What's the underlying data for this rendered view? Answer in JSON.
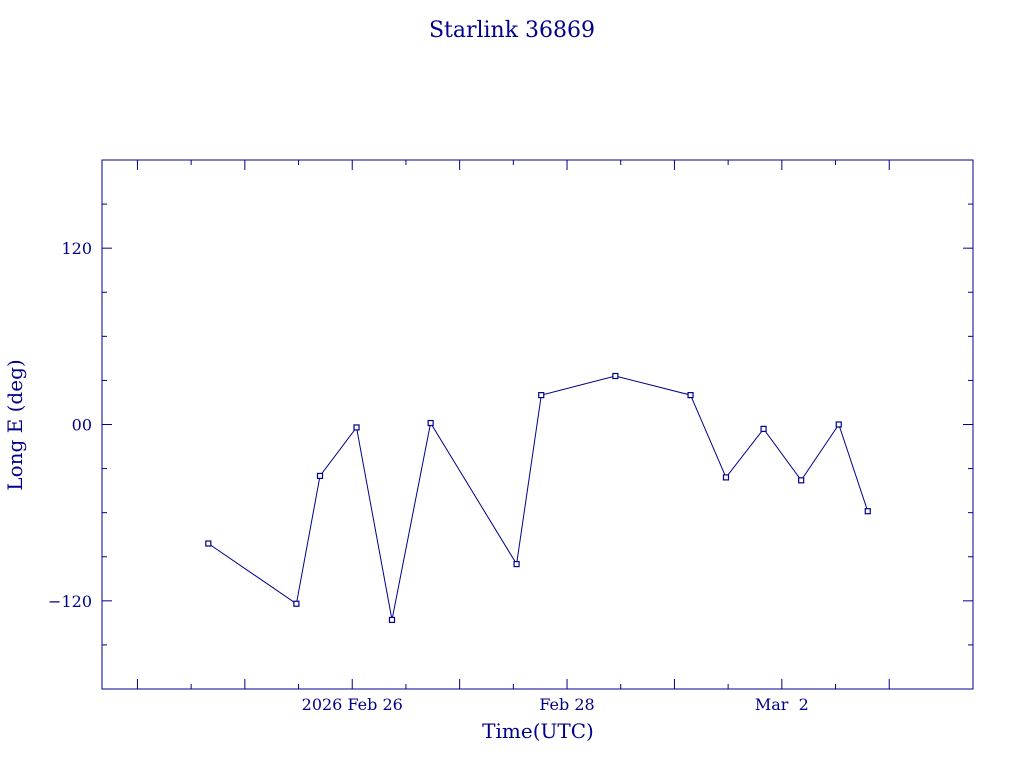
{
  "chart_data": {
    "type": "line",
    "title": "Starlink 36869",
    "xlabel": "Time(UTC)",
    "ylabel": "Long E (deg)",
    "x_ticks": [
      {
        "x": 2,
        "label": "2026 Feb 26"
      },
      {
        "x": 4,
        "label": "Feb 28"
      },
      {
        "x": 6,
        "label": "Mar  2"
      }
    ],
    "y_ticks": [
      {
        "y": 120,
        "label": "120"
      },
      {
        "y": 0,
        "label": "00"
      },
      {
        "y": -120,
        "label": "−120"
      }
    ],
    "xlim": [
      -0.33,
      7.78
    ],
    "ylim": [
      -180,
      180
    ],
    "x_unit": "days from 2026 Feb 24 00:00 UTC",
    "series": [
      {
        "values": [
          {
            "x": 0.66,
            "y": -81
          },
          {
            "x": 1.48,
            "y": -122
          },
          {
            "x": 1.7,
            "y": -35
          },
          {
            "x": 2.04,
            "y": -2
          },
          {
            "x": 2.37,
            "y": -133
          },
          {
            "x": 2.73,
            "y": 1
          },
          {
            "x": 3.53,
            "y": -95
          },
          {
            "x": 3.76,
            "y": 20
          },
          {
            "x": 4.45,
            "y": 33
          },
          {
            "x": 5.15,
            "y": 20
          },
          {
            "x": 5.48,
            "y": -36
          },
          {
            "x": 5.83,
            "y": -3
          },
          {
            "x": 6.18,
            "y": -38
          },
          {
            "x": 6.53,
            "y": 0
          },
          {
            "x": 6.8,
            "y": -59
          }
        ]
      }
    ]
  }
}
